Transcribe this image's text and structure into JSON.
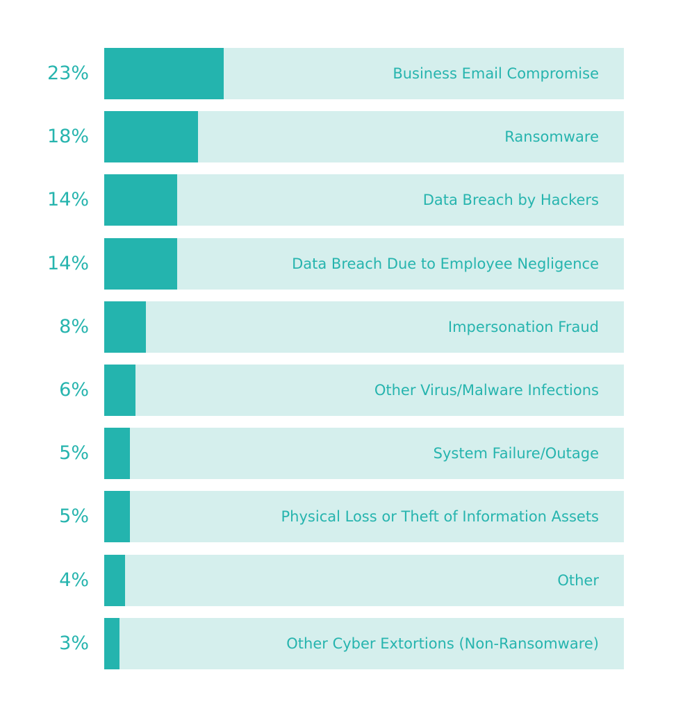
{
  "chart_data": {
    "type": "bar",
    "orientation": "horizontal",
    "title": "",
    "xlabel": "",
    "ylabel": "",
    "xlim": [
      0,
      100
    ],
    "grid": false,
    "legend": "none",
    "categories": [
      "Business Email Compromise",
      "Ransomware",
      "Data Breach by Hackers",
      "Data Breach Due to Employee Negligence",
      "Impersonation Fraud",
      "Other Virus/Malware Infections",
      "System Failure/Outage",
      "Physical Loss or Theft of Information Assets",
      "Other",
      "Other Cyber Extortions (Non-Ransomware)"
    ],
    "values": [
      23,
      18,
      14,
      14,
      8,
      6,
      5,
      5,
      4,
      3
    ],
    "value_labels": [
      "23%",
      "18%",
      "14%",
      "14%",
      "8%",
      "6%",
      "5%",
      "5%",
      "4%",
      "3%"
    ],
    "colors": {
      "bar": "#24b4ae",
      "track": "#d5efed",
      "text": "#26b4ae"
    }
  }
}
